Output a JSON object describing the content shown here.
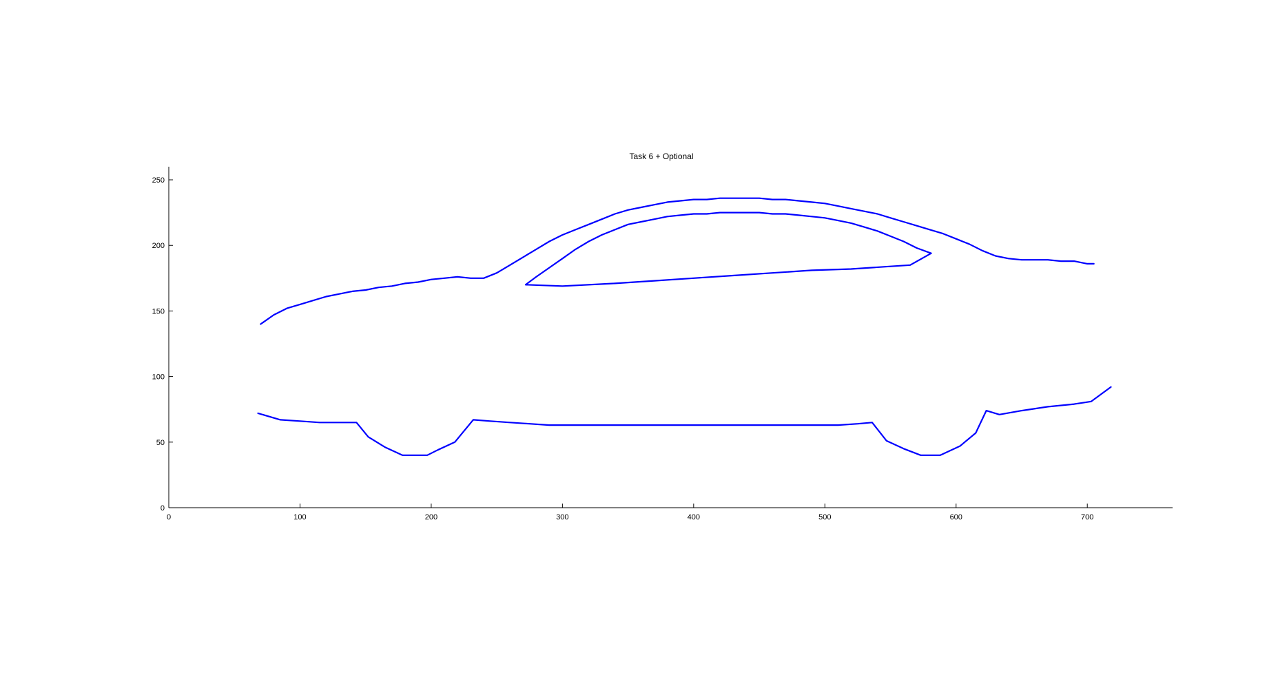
{
  "chart_data": {
    "type": "line",
    "title": "Task 6 + Optional",
    "xlabel": "",
    "ylabel": "",
    "xlim": [
      0,
      765
    ],
    "ylim": [
      0,
      260
    ],
    "xticks": [
      0,
      100,
      200,
      300,
      400,
      500,
      600,
      700
    ],
    "yticks": [
      0,
      50,
      100,
      150,
      200,
      250
    ],
    "grid": false,
    "line_color": "#0000ff",
    "series": [
      {
        "x": [
          70,
          80,
          90,
          100,
          110,
          120,
          130,
          140,
          150,
          160,
          170,
          180,
          190,
          200,
          210,
          220,
          230,
          240,
          250,
          260,
          270,
          280,
          290,
          300,
          310,
          320,
          330,
          340,
          350,
          360,
          370,
          380,
          390,
          400,
          410,
          420,
          430,
          440,
          450,
          460,
          470,
          480,
          490,
          500,
          510,
          520,
          530,
          540,
          550,
          560,
          570,
          580,
          590,
          600,
          610,
          620,
          630,
          640,
          650,
          660,
          670,
          680,
          690,
          700,
          705
        ],
        "y": [
          140,
          147,
          152,
          155,
          158,
          161,
          163,
          165,
          166,
          168,
          169,
          171,
          172,
          174,
          175,
          176,
          175,
          175,
          179,
          185,
          191,
          197,
          203,
          208,
          212,
          216,
          220,
          224,
          227,
          229,
          231,
          233,
          234,
          235,
          235,
          236,
          236,
          236,
          236,
          235,
          235,
          234,
          233,
          232,
          230,
          228,
          226,
          224,
          221,
          218,
          215,
          212,
          209,
          205,
          201,
          196,
          192,
          190,
          189,
          189,
          189,
          188,
          188,
          186,
          186
        ]
      },
      {
        "x": [
          272,
          280,
          290,
          300,
          310,
          320,
          330,
          340,
          350,
          360,
          370,
          380,
          390,
          400,
          410,
          420,
          430,
          440,
          450,
          460,
          470,
          480,
          490,
          500,
          510,
          520,
          530,
          540,
          550,
          560,
          570,
          581,
          565,
          550,
          520,
          490,
          460,
          430,
          400,
          370,
          340,
          300,
          272
        ],
        "y": [
          170,
          176,
          183,
          190,
          197,
          203,
          208,
          212,
          216,
          218,
          220,
          222,
          223,
          224,
          224,
          225,
          225,
          225,
          225,
          224,
          224,
          223,
          222,
          221,
          219,
          217,
          214,
          211,
          207,
          203,
          198,
          194,
          185,
          184,
          182,
          181,
          179,
          177,
          175,
          173,
          171,
          169,
          170
        ]
      },
      {
        "x": [
          68,
          85,
          100,
          115,
          130,
          143,
          152,
          165,
          178,
          190,
          197,
          205,
          218,
          232,
          245,
          260,
          275,
          290,
          305,
          325,
          350,
          380,
          410,
          450,
          490,
          510,
          525,
          536,
          547,
          560,
          573,
          588,
          603,
          615,
          623,
          633,
          650,
          670,
          690,
          703,
          718
        ],
        "y": [
          72,
          67,
          66,
          65,
          65,
          65,
          54,
          46,
          40,
          40,
          40,
          44,
          50,
          67,
          66,
          65,
          64,
          63,
          63,
          63,
          63,
          63,
          63,
          63,
          63,
          63,
          64,
          65,
          51,
          45,
          40,
          40,
          47,
          57,
          74,
          71,
          74,
          77,
          79,
          81,
          92
        ]
      }
    ]
  }
}
